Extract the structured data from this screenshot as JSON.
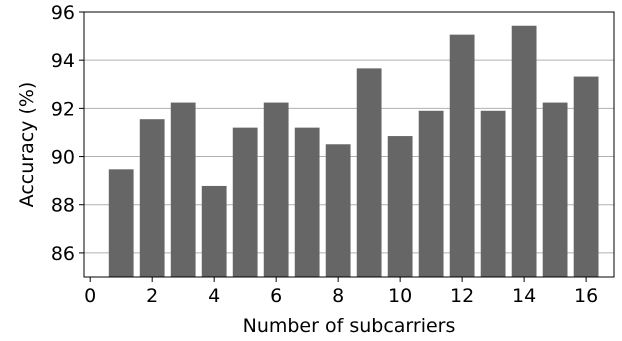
{
  "chart_data": {
    "type": "bar",
    "x": [
      1,
      2,
      3,
      4,
      5,
      6,
      7,
      8,
      9,
      10,
      11,
      12,
      13,
      14,
      15,
      16
    ],
    "values": [
      89.47,
      91.55,
      92.24,
      88.78,
      91.2,
      92.24,
      91.2,
      90.51,
      93.66,
      90.85,
      91.9,
      95.06,
      91.9,
      95.43,
      92.24,
      93.32
    ],
    "xlabel": "Number of subcarriers",
    "ylabel": "Accuracy (%)",
    "xlim": [
      -0.2,
      16.9
    ],
    "ylim": [
      85,
      96
    ],
    "xticks": [
      0,
      2,
      4,
      6,
      8,
      10,
      12,
      14,
      16
    ],
    "yticks": [
      86,
      88,
      90,
      92,
      94,
      96
    ],
    "grid": "y",
    "bar_color": "#666666",
    "grid_color": "#b0b0b0"
  }
}
